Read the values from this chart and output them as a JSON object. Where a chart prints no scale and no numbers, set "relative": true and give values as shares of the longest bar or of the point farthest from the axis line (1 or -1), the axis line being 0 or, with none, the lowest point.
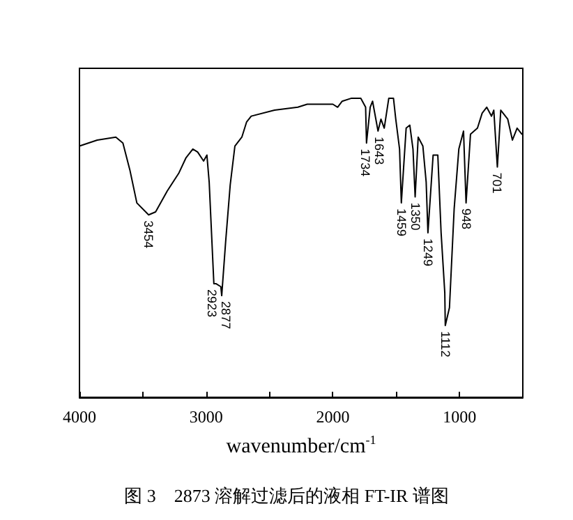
{
  "chart_data": {
    "type": "line",
    "title": "图 3　2873 溶解过滤后的液相 FT-IR 谱图",
    "xlabel": "wavenumber/cm$^{-1}$",
    "relative": true,
    "tick_labels": "x",
    "grid": false,
    "marker": "none",
    "line_style": "solid",
    "xlim": [
      4000,
      500
    ],
    "xticks": [
      4000,
      {
        "value": 3500,
        "label": null
      },
      3000,
      {
        "value": 2500,
        "label": null
      },
      2000,
      {
        "value": 1500,
        "label": null
      },
      1000
    ],
    "series": [
      {
        "color": "#000000",
        "x": [
          4000,
          3860,
          3713,
          3657,
          3602,
          3547,
          3454,
          3399,
          3307,
          3215,
          3160,
          3105,
          3067,
          3020,
          2994,
          2976,
          2939,
          2923,
          2884,
          2877,
          2846,
          2810,
          2773,
          2718,
          2681,
          2644,
          2460,
          2276,
          2202,
          2000,
          1962,
          1926,
          1852,
          1779,
          1741,
          1734,
          1705,
          1686,
          1643,
          1620,
          1594,
          1558,
          1521,
          1503,
          1473,
          1459,
          1421,
          1392,
          1367,
          1350,
          1326,
          1289,
          1263,
          1249,
          1208,
          1171,
          1145,
          1116,
          1112,
          1079,
          1042,
          1005,
          968,
          948,
          913,
          858,
          821,
          785,
          747,
          729,
          701,
          674,
          619,
          582,
          545,
          508,
          500
        ],
        "values": [
          0.84,
          0.86,
          0.87,
          0.85,
          0.76,
          0.65,
          0.61,
          0.62,
          0.69,
          0.75,
          0.8,
          0.83,
          0.82,
          0.79,
          0.81,
          0.72,
          0.38,
          0.38,
          0.37,
          0.34,
          0.52,
          0.71,
          0.84,
          0.87,
          0.92,
          0.94,
          0.96,
          0.97,
          0.98,
          0.98,
          0.97,
          0.99,
          1.0,
          1.0,
          0.97,
          0.85,
          0.97,
          0.99,
          0.89,
          0.93,
          0.9,
          1.0,
          1.0,
          0.93,
          0.83,
          0.65,
          0.9,
          0.91,
          0.83,
          0.67,
          0.87,
          0.84,
          0.72,
          0.55,
          0.81,
          0.81,
          0.55,
          0.35,
          0.24,
          0.3,
          0.63,
          0.83,
          0.89,
          0.65,
          0.88,
          0.9,
          0.95,
          0.97,
          0.94,
          0.96,
          0.77,
          0.96,
          0.93,
          0.86,
          0.9,
          0.88,
          0.88
        ]
      }
    ],
    "annotations": [
      {
        "text": "3454",
        "x": 3454,
        "y": 0.61
      },
      {
        "text": "2923",
        "x": 2923,
        "y": 0.38
      },
      {
        "text": "2877",
        "x": 2877,
        "y": 0.34
      },
      {
        "text": "1734",
        "x": 1734,
        "y": 0.85
      },
      {
        "text": "1643",
        "x": 1643,
        "y": 0.89
      },
      {
        "text": "1459",
        "x": 1459,
        "y": 0.65
      },
      {
        "text": "1350",
        "x": 1350,
        "y": 0.67
      },
      {
        "text": "1249",
        "x": 1249,
        "y": 0.55
      },
      {
        "text": "1112",
        "x": 1112,
        "y": 0.24
      },
      {
        "text": "948",
        "x": 948,
        "y": 0.65
      },
      {
        "text": "701",
        "x": 701,
        "y": 0.77
      }
    ]
  }
}
